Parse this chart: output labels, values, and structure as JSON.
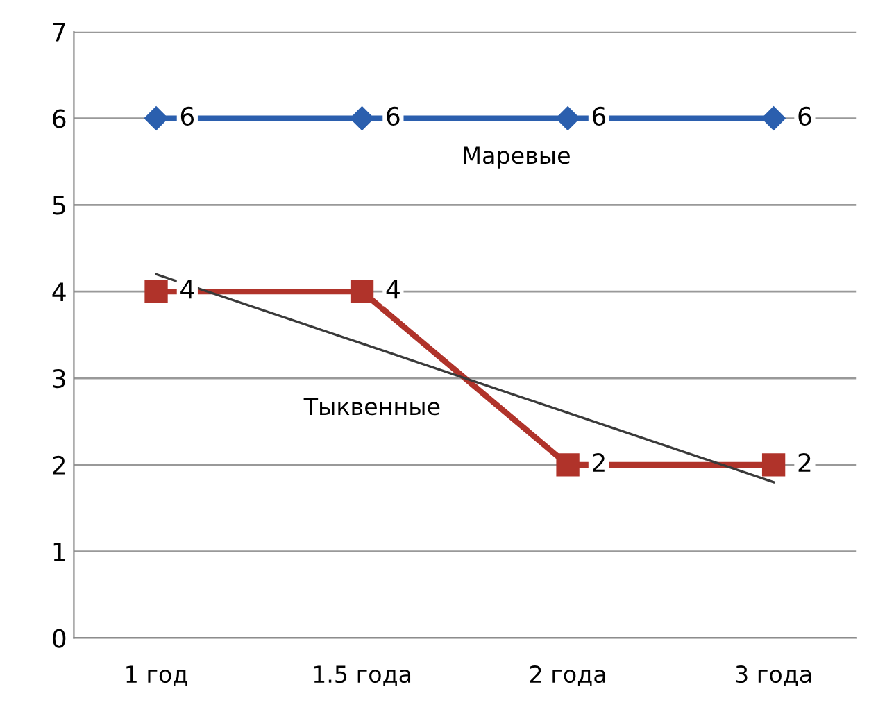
{
  "chart_data": {
    "type": "line",
    "categories": [
      "1 год",
      "1.5 года",
      "2 года",
      "3 года"
    ],
    "series": [
      {
        "name": "Маревые",
        "color": "#2b5fae",
        "values": [
          6,
          6,
          6,
          6
        ],
        "value_labels": [
          "6",
          "6",
          "6",
          "6"
        ],
        "marker": "diamond"
      },
      {
        "name": "Тыквенные",
        "color": "#b0332a",
        "values": [
          4,
          4,
          2,
          2
        ],
        "value_labels": [
          "4",
          "4",
          "2",
          "2"
        ],
        "marker": "square"
      },
      {
        "color": "#3a3a3a",
        "values": [
          4.2,
          3.4,
          2.6,
          1.8
        ],
        "marker": "none"
      }
    ],
    "ylim": [
      0,
      7
    ],
    "yticks": [
      0,
      1,
      2,
      3,
      4,
      5,
      6,
      7
    ],
    "grid": "y",
    "legend": false
  }
}
